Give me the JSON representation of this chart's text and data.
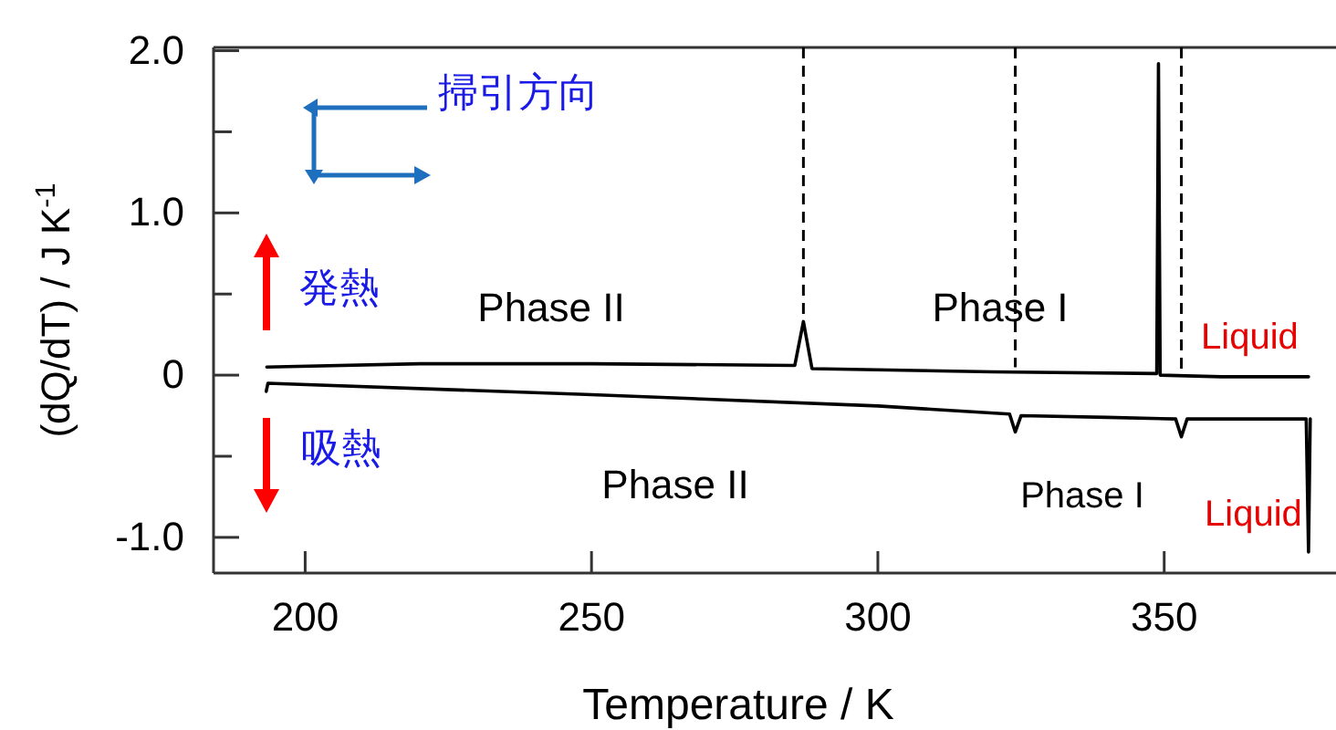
{
  "chart_data": {
    "type": "line",
    "xlabel": "Temperature / K",
    "ylabel": "(dQ/dT) / J K$^{-1}$",
    "xlim": [
      184,
      380
    ],
    "ylim": [
      -1.22,
      2.02
    ],
    "xticks": [
      200,
      250,
      300,
      350
    ],
    "yticks": [
      {
        "value": 2.0,
        "label": "2.0"
      },
      {
        "value": 1.5,
        "label": null
      },
      {
        "value": 1.0,
        "label": "1.0"
      },
      {
        "value": 0.5,
        "label": null
      },
      0,
      {
        "value": -0.5,
        "label": null
      },
      {
        "value": -1.0,
        "label": "-1.0"
      }
    ],
    "grid": false,
    "marker": "none",
    "line_style": "solid",
    "series": [
      {
        "color": "#000000",
        "x": [
          193.3,
          220,
          250,
          285.5,
          287,
          288.5,
          320,
          348.7,
          349,
          349.3,
          360,
          375.2
        ],
        "values": [
          0.05,
          0.07,
          0.07,
          0.06,
          0.33,
          0.04,
          0.02,
          0.01,
          1.92,
          0.0,
          -0.01,
          -0.01
        ]
      },
      {
        "color": "#000000",
        "x": [
          193.2,
          193.5,
          250,
          300,
          323,
          324,
          325,
          340,
          352,
          353,
          354,
          374.8,
          375.2,
          375.5
        ],
        "values": [
          -0.1,
          -0.05,
          -0.12,
          -0.19,
          -0.24,
          -0.35,
          -0.25,
          -0.26,
          -0.27,
          -0.38,
          -0.27,
          -0.27,
          -1.09,
          -0.27
        ]
      }
    ],
    "ref_lines": [
      {
        "axis": "x",
        "value": 287,
        "line_style": "dashed"
      },
      {
        "axis": "x",
        "value": 324,
        "line_style": "dashed"
      },
      {
        "axis": "x",
        "value": 353,
        "line_style": "dashed"
      }
    ],
    "annotations": [
      "掃引方向",
      "発熱",
      "吸熱",
      "Phase II",
      "Phase I",
      "Liquid",
      "Phase II",
      "Phase I",
      "Liquid"
    ]
  }
}
